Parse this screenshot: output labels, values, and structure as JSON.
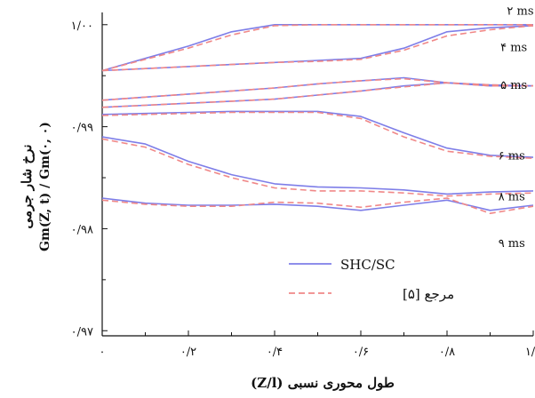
{
  "chart_data": {
    "type": "line",
    "xlabel": "طول محوری نسبی (Z/l)",
    "ylabel_main": "نرخ شار جرمی",
    "ylabel_formula": "Gm(Z, t) / Gm(۰, ۰)",
    "xlim": [
      0,
      1
    ],
    "ylim": [
      0.9695,
      1.0012
    ],
    "x_ticks": [
      0,
      0.2,
      0.4,
      0.6,
      0.8,
      1.0
    ],
    "x_tick_labels": [
      "۰",
      "۰/۲",
      "۰/۴",
      "۰/۶",
      "۰/۸",
      "۱/۰"
    ],
    "y_ticks": [
      0.97,
      0.98,
      0.99,
      1.0
    ],
    "y_tick_labels": [
      "۰/۹۷",
      "۰/۹۸",
      "۰/۹۹",
      "۱/۰۰"
    ],
    "time_labels": [
      {
        "text": "۲ ms",
        "x": 0.97,
        "y": 1.001
      },
      {
        "text": "۴ ms",
        "x": 0.955,
        "y": 0.9974
      },
      {
        "text": "۵ ms",
        "x": 0.955,
        "y": 0.9937
      },
      {
        "text": "۶ ms",
        "x": 0.95,
        "y": 0.9868
      },
      {
        "text": "۸ ms",
        "x": 0.95,
        "y": 0.9828
      },
      {
        "text": "۹ ms",
        "x": 0.95,
        "y": 0.9782
      }
    ],
    "series": [
      {
        "name": "SHC/SC",
        "color": "#7e7ee8",
        "style": "solid",
        "lines": [
          {
            "x": [
              0,
              0.1,
              0.2,
              0.3,
              0.4,
              0.5,
              0.6,
              0.7,
              0.8,
              0.9,
              1.0
            ],
            "y": [
              0.9955,
              0.9967,
              0.9979,
              0.9993,
              1.0,
              1.0,
              1.0,
              1.0,
              1.0,
              1.0,
              1.0
            ]
          },
          {
            "x": [
              0,
              0.1,
              0.2,
              0.3,
              0.4,
              0.5,
              0.6,
              0.7,
              0.8,
              0.9,
              1.0
            ],
            "y": [
              0.9955,
              0.9957,
              0.9959,
              0.9961,
              0.9963,
              0.9965,
              0.9967,
              0.9977,
              0.9993,
              0.9997,
              0.9999
            ]
          },
          {
            "x": [
              0,
              0.1,
              0.2,
              0.3,
              0.4,
              0.5,
              0.6,
              0.7,
              0.8,
              0.9,
              1.0
            ],
            "y": [
              0.9926,
              0.9929,
              0.9932,
              0.9935,
              0.9938,
              0.9942,
              0.9945,
              0.9948,
              0.9943,
              0.994,
              0.994
            ]
          },
          {
            "x": [
              0,
              0.1,
              0.2,
              0.3,
              0.4,
              0.5,
              0.6,
              0.7,
              0.8,
              0.9,
              1.0
            ],
            "y": [
              0.9919,
              0.9921,
              0.9923,
              0.9925,
              0.9927,
              0.9931,
              0.9935,
              0.994,
              0.9943,
              0.9941,
              0.994
            ]
          },
          {
            "x": [
              0,
              0.1,
              0.2,
              0.3,
              0.4,
              0.5,
              0.6,
              0.7,
              0.8,
              0.9,
              1.0
            ],
            "y": [
              0.9912,
              0.9913,
              0.9914,
              0.9915,
              0.9915,
              0.9915,
              0.991,
              0.9894,
              0.9879,
              0.9872,
              0.987
            ]
          },
          {
            "x": [
              0,
              0.1,
              0.2,
              0.3,
              0.4,
              0.5,
              0.6,
              0.7,
              0.8,
              0.9,
              1.0
            ],
            "y": [
              0.989,
              0.9883,
              0.9866,
              0.9853,
              0.9844,
              0.9841,
              0.984,
              0.9838,
              0.9834,
              0.9836,
              0.9837
            ]
          },
          {
            "x": [
              0,
              0.1,
              0.2,
              0.3,
              0.4,
              0.5,
              0.6,
              0.7,
              0.8,
              0.9,
              1.0
            ],
            "y": [
              0.983,
              0.9825,
              0.9823,
              0.9823,
              0.9824,
              0.9822,
              0.9818,
              0.9823,
              0.9828,
              0.9818,
              0.9823
            ]
          }
        ]
      },
      {
        "name": "مرجع [۵]",
        "color": "#f08888",
        "style": "dashed",
        "lines": [
          {
            "x": [
              0,
              0.1,
              0.2,
              0.3,
              0.4,
              0.5,
              0.6,
              0.7,
              0.8,
              0.9,
              1.0
            ],
            "y": [
              0.9955,
              0.9966,
              0.9977,
              0.999,
              0.9999,
              1.0,
              1.0,
              1.0,
              1.0,
              1.0,
              1.0
            ]
          },
          {
            "x": [
              0,
              0.1,
              0.2,
              0.3,
              0.4,
              0.5,
              0.6,
              0.7,
              0.8,
              0.9,
              1.0
            ],
            "y": [
              0.9955,
              0.9957,
              0.9959,
              0.9961,
              0.9963,
              0.9964,
              0.9966,
              0.9975,
              0.9989,
              0.9995,
              0.9999
            ]
          },
          {
            "x": [
              0,
              0.1,
              0.2,
              0.3,
              0.4,
              0.5,
              0.6,
              0.7,
              0.8,
              0.9,
              1.0
            ],
            "y": [
              0.9926,
              0.9929,
              0.9932,
              0.9935,
              0.9938,
              0.9942,
              0.9945,
              0.9947,
              0.9943,
              0.994,
              0.994
            ]
          },
          {
            "x": [
              0,
              0.1,
              0.2,
              0.3,
              0.4,
              0.5,
              0.6,
              0.7,
              0.8,
              0.9,
              1.0
            ],
            "y": [
              0.9919,
              0.9921,
              0.9923,
              0.9925,
              0.9927,
              0.9931,
              0.9935,
              0.9939,
              0.9943,
              0.9941,
              0.994
            ]
          },
          {
            "x": [
              0,
              0.1,
              0.2,
              0.3,
              0.4,
              0.5,
              0.6,
              0.7,
              0.8,
              0.9,
              1.0
            ],
            "y": [
              0.9911,
              0.9912,
              0.9913,
              0.9914,
              0.9914,
              0.9914,
              0.9908,
              0.989,
              0.9876,
              0.9871,
              0.9869
            ]
          },
          {
            "x": [
              0,
              0.1,
              0.2,
              0.3,
              0.4,
              0.5,
              0.6,
              0.7,
              0.8,
              0.9,
              1.0
            ],
            "y": [
              0.9888,
              0.988,
              0.9863,
              0.985,
              0.984,
              0.9837,
              0.9837,
              0.9835,
              0.9832,
              0.9834,
              0.9835
            ]
          },
          {
            "x": [
              0,
              0.1,
              0.2,
              0.3,
              0.4,
              0.5,
              0.6,
              0.7,
              0.8,
              0.9,
              1.0
            ],
            "y": [
              0.9828,
              0.9824,
              0.9822,
              0.9822,
              0.9826,
              0.9825,
              0.9821,
              0.9826,
              0.983,
              0.9815,
              0.9822
            ]
          }
        ]
      }
    ],
    "legend": {
      "placement": "center-bottom",
      "entries": [
        "SHC/SC",
        "مرجع [۵]"
      ]
    },
    "grid": false
  }
}
